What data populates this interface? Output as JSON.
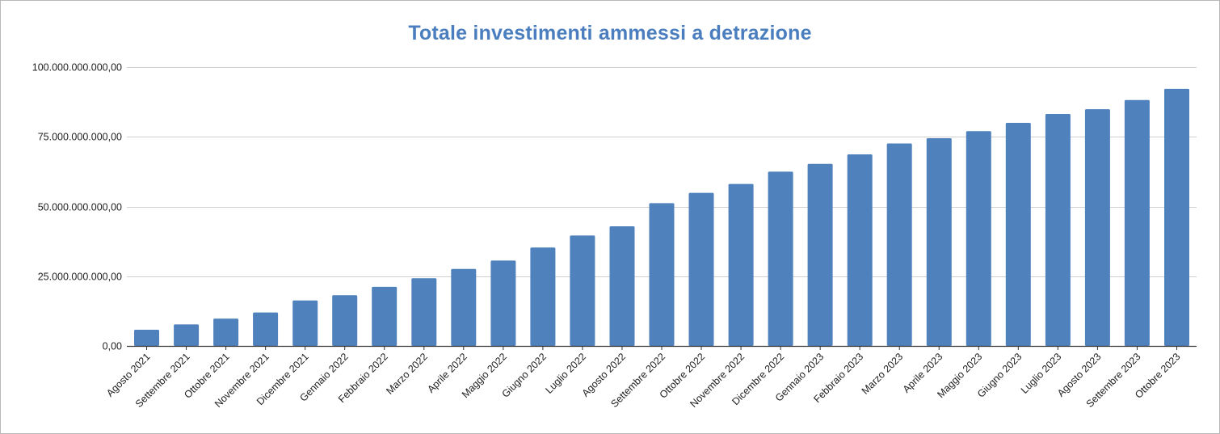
{
  "chart_data": {
    "type": "bar",
    "title": "Totale investimenti ammessi a detrazione",
    "xlabel": "",
    "ylabel": "",
    "ylim": [
      0,
      100000000000
    ],
    "yticks": [
      0,
      25000000000,
      50000000000,
      75000000000,
      100000000000
    ],
    "ytick_labels": [
      "0,00",
      "25.000.000.000,00",
      "50.000.000.000,00",
      "75.000.000.000,00",
      "100.000.000.000,00"
    ],
    "grid": true,
    "legend": "none",
    "bar_color": "#4f81bd",
    "categories": [
      "Agosto 2021",
      "Settembre 2021",
      "Ottobre 2021",
      "Novembre 2021",
      "Dicembre 2021",
      "Gennaio 2022",
      "Febbraio 2022",
      "Marzo 2022",
      "Aprile 2022",
      "Maggio 2022",
      "Giugno 2022",
      "Luglio 2022",
      "Agosto 2022",
      "Settembre 2022",
      "Ottobre 2022",
      "Novembre 2022",
      "Dicembre 2022",
      "Gennaio 2023",
      "Febbraio 2023",
      "Marzo 2023",
      "Aprile 2023",
      "Maggio 2023",
      "Giugno 2023",
      "Luglio 2023",
      "Agosto 2023",
      "Settembre 2023",
      "Ottobre 2023"
    ],
    "values": [
      5800000000,
      7700000000,
      9800000000,
      12000000000,
      16300000000,
      18200000000,
      21200000000,
      24300000000,
      27600000000,
      30600000000,
      35300000000,
      39600000000,
      42900000000,
      51200000000,
      54900000000,
      58100000000,
      62500000000,
      65300000000,
      68700000000,
      72600000000,
      74500000000,
      77000000000,
      80000000000,
      83200000000,
      84900000000,
      88200000000,
      92200000000
    ]
  }
}
